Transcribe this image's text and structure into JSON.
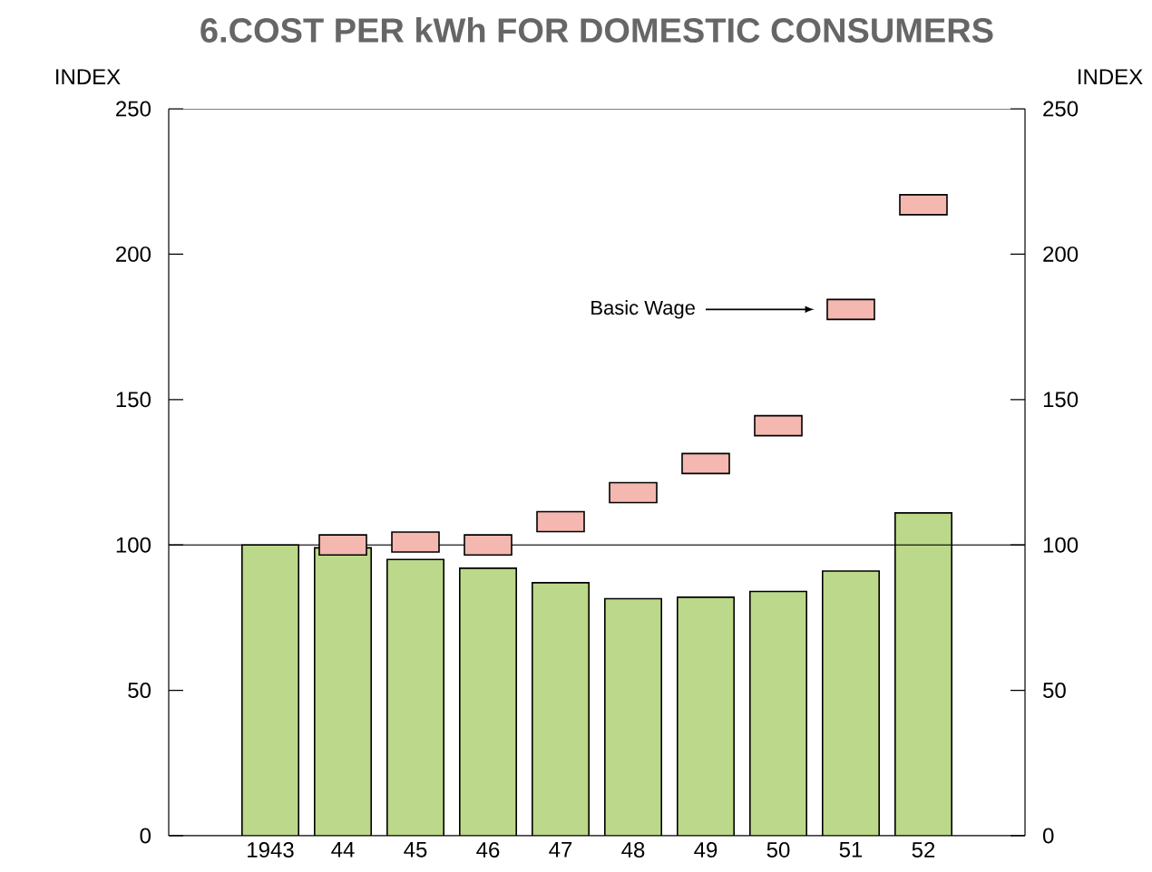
{
  "chart_data": {
    "type": "bar",
    "title": "6.COST PER kWh FOR DOMESTIC CONSUMERS",
    "ylabel": "INDEX",
    "y2label": "INDEX",
    "categories": [
      "1943",
      "44",
      "45",
      "46",
      "47",
      "48",
      "49",
      "50",
      "51",
      "52"
    ],
    "series": [
      {
        "color": "#bcd88a",
        "values": [
          100,
          99,
          95,
          92,
          87,
          81.5,
          82,
          84,
          91,
          111
        ]
      },
      {
        "type": "scatter",
        "name": "Basic Wage",
        "color": "#f4b8b0",
        "values": [
          null,
          100,
          101,
          100,
          108,
          118,
          128,
          141,
          181,
          217
        ]
      }
    ],
    "marker": "square",
    "ylim": [
      0,
      250
    ],
    "yticks": [
      0,
      50,
      100,
      150,
      200,
      250
    ],
    "y2lim": [
      0,
      250
    ],
    "y2ticks": [
      0,
      50,
      100,
      150,
      200,
      250
    ],
    "ref_lines": [
      {
        "axis": "y",
        "value": 100
      }
    ]
  }
}
